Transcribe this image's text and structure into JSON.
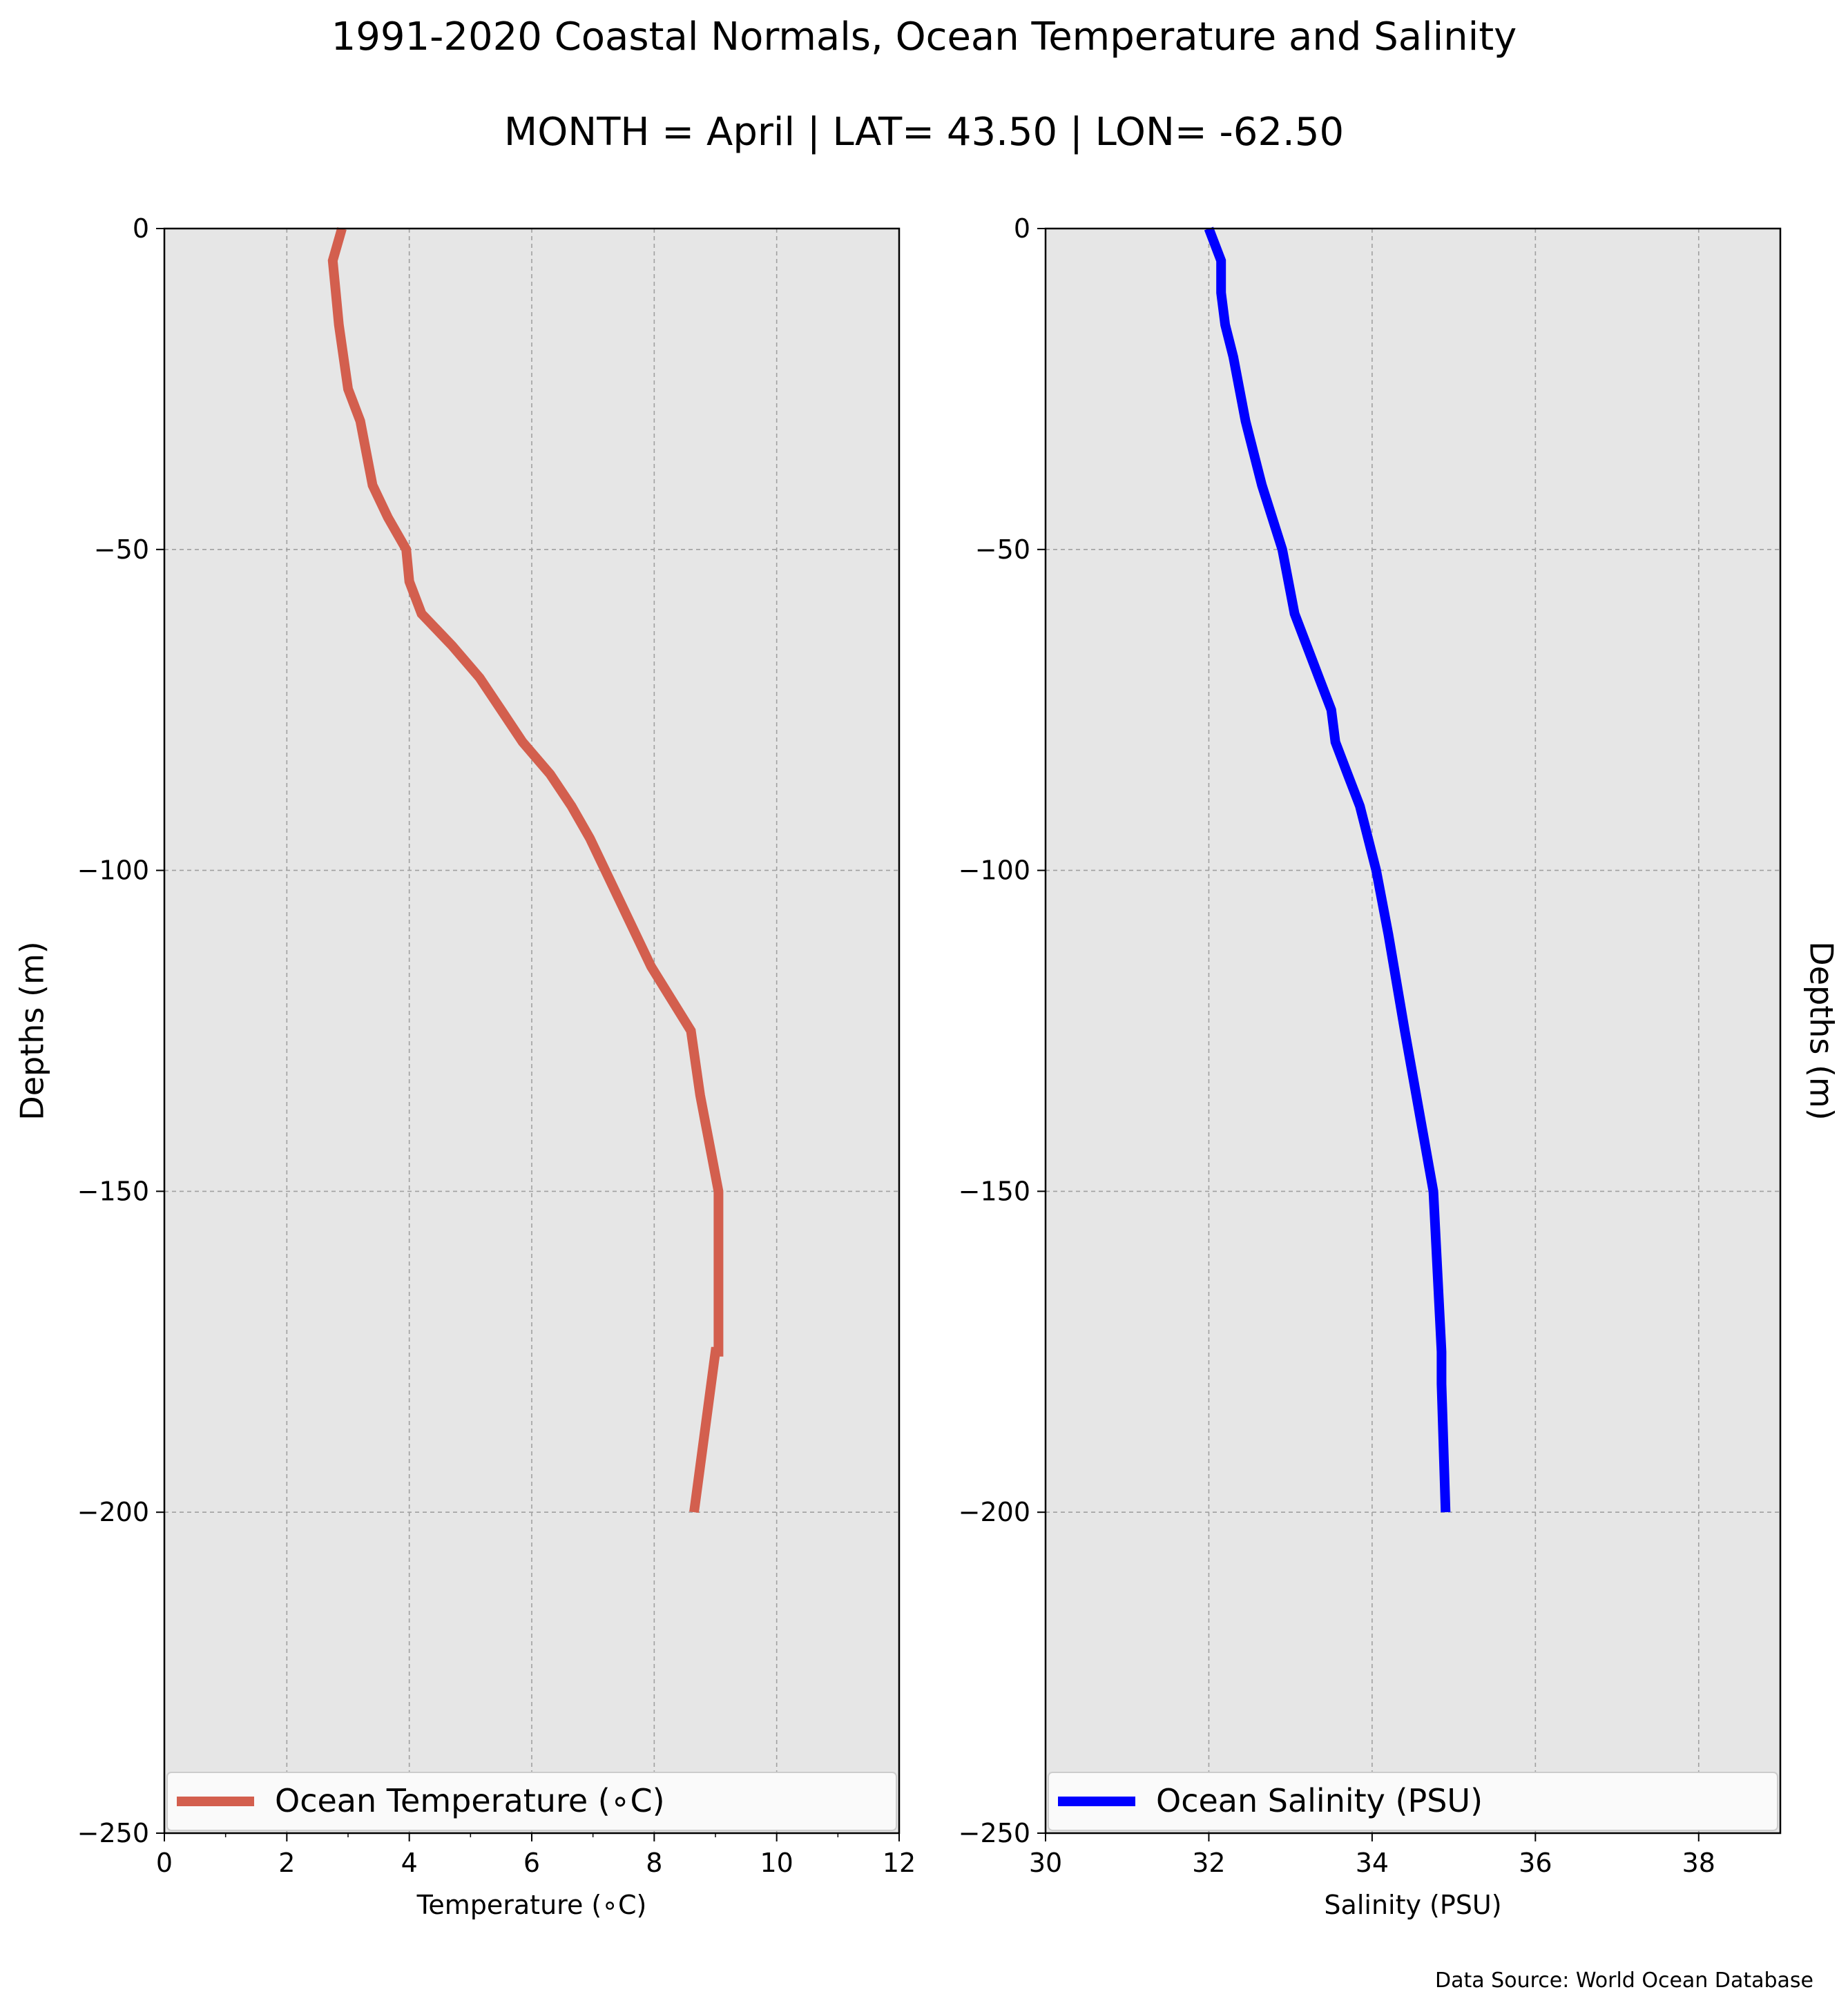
{
  "figure": {
    "title": "1991-2020 Coastal Normals, Ocean Temperature and Salinity",
    "subtitle": "MONTH = April | LAT= 43.50 | LON= -62.50",
    "source_note": "Data Source: World Ocean Database"
  },
  "chart_data": [
    {
      "type": "line",
      "xlabel": "Temperature ($^\\circ$C)",
      "xlabel_display": "Temperature (∘C)",
      "ylabel": "Depths (m)",
      "xlim": [
        0,
        12
      ],
      "ylim": [
        -250,
        0
      ],
      "xticks": [
        "0",
        "2",
        "4",
        "6",
        "8",
        "10",
        "12"
      ],
      "yticks": [
        "0",
        "−50",
        "−100",
        "−150",
        "−200",
        "−250"
      ],
      "grid": true,
      "legend_position": "lower-center",
      "series": [
        {
          "name": "Ocean Temperature (∘C)",
          "color": "#d35f4e",
          "x": [
            2.9,
            2.75,
            2.8,
            2.85,
            3.0,
            3.2,
            3.4,
            3.65,
            3.95,
            4.0,
            4.2,
            4.7,
            5.15,
            5.5,
            5.85,
            6.3,
            6.65,
            6.95,
            7.2,
            7.95,
            8.6,
            8.75,
            9.05,
            9.05,
            9.0,
            8.65
          ],
          "y": [
            0,
            -5,
            -10,
            -15,
            -25,
            -30,
            -40,
            -45,
            -50,
            -55,
            -60,
            -65,
            -70,
            -75,
            -80,
            -85,
            -90,
            -95,
            -100,
            -115,
            -125,
            -135,
            -150,
            -175,
            -175,
            -200
          ]
        }
      ]
    },
    {
      "type": "line",
      "xlabel": "Salinity (PSU)",
      "ylabel": "Depths (m)",
      "xlim": [
        30,
        39
      ],
      "ylim": [
        -250,
        0
      ],
      "xticks": [
        "30",
        "32",
        "34",
        "36",
        "38"
      ],
      "yticks": [
        "0",
        "−50",
        "−100",
        "−150",
        "−200",
        "−250"
      ],
      "grid": true,
      "legend_position": "lower-center",
      "series": [
        {
          "name": "Ocean Salinity (PSU)",
          "color": "#0000ff",
          "x": [
            32.0,
            32.15,
            32.15,
            32.2,
            32.3,
            32.45,
            32.65,
            32.9,
            33.05,
            33.35,
            33.5,
            33.55,
            33.7,
            33.85,
            34.05,
            34.2,
            34.4,
            34.75,
            34.85,
            34.85,
            34.9
          ],
          "y": [
            0,
            -5,
            -10,
            -15,
            -20,
            -30,
            -40,
            -50,
            -60,
            -70,
            -75,
            -80,
            -85,
            -90,
            -100,
            -110,
            -125,
            -150,
            -175,
            -180,
            -200
          ]
        }
      ]
    }
  ]
}
